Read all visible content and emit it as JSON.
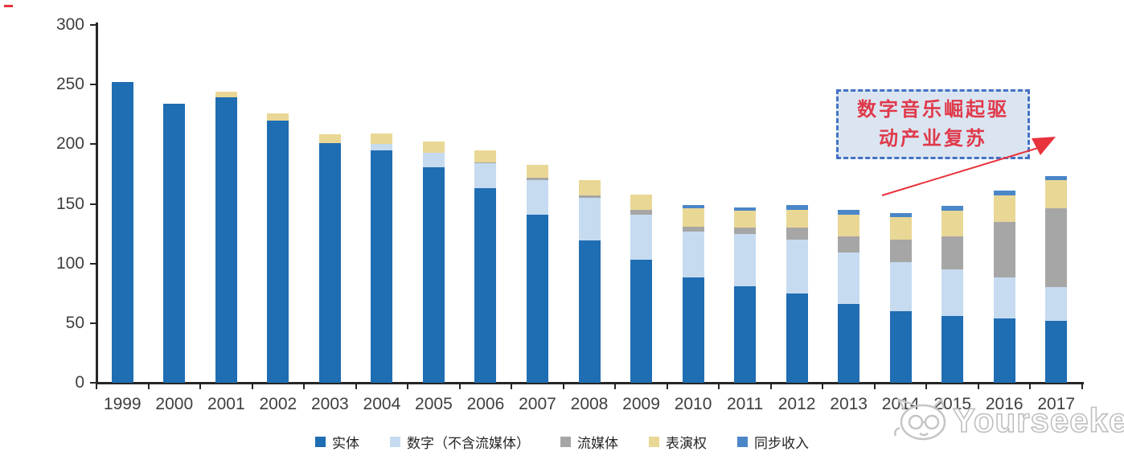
{
  "chart_data": {
    "type": "bar",
    "stacked": true,
    "title": "",
    "xlabel": "",
    "ylabel": "",
    "ylim": [
      0,
      300
    ],
    "yticks": [
      0,
      50,
      100,
      150,
      200,
      250,
      300
    ],
    "grid": false,
    "legend_position": "bottom",
    "categories": [
      "1999",
      "2000",
      "2001",
      "2002",
      "2003",
      "2004",
      "2005",
      "2006",
      "2007",
      "2008",
      "2009",
      "2010",
      "2011",
      "2012",
      "2013",
      "2014",
      "2015",
      "2016",
      "2017"
    ],
    "series": [
      {
        "key": "physical",
        "name": "实体",
        "color": "#1f6db3",
        "values": [
          252,
          234,
          239,
          220,
          201,
          195,
          181,
          163,
          141,
          119,
          103,
          88,
          81,
          75,
          66,
          60,
          56,
          54,
          52
        ]
      },
      {
        "key": "digital-excl-streaming",
        "name": "数字（不含流媒体）",
        "color": "#c6dbf0",
        "values": [
          0,
          0,
          0,
          0,
          0,
          5,
          12,
          21,
          29,
          36,
          38,
          39,
          44,
          45,
          43,
          41,
          39,
          34,
          28
        ]
      },
      {
        "key": "streaming",
        "name": "流媒体",
        "color": "#a6a6a6",
        "values": [
          0,
          0,
          0,
          0,
          0,
          0,
          0,
          1,
          2,
          2,
          4,
          4,
          5,
          10,
          14,
          19,
          28,
          47,
          66
        ]
      },
      {
        "key": "performance-rights",
        "name": "表演权",
        "color": "#e9d795",
        "values": [
          0,
          0,
          5,
          6,
          7,
          9,
          9,
          10,
          11,
          13,
          13,
          15,
          14,
          15,
          18,
          19,
          21,
          22,
          24
        ]
      },
      {
        "key": "sync",
        "name": "同步收入",
        "color": "#4a86c8",
        "values": [
          0,
          0,
          0,
          0,
          0,
          0,
          0,
          0,
          0,
          0,
          0,
          3,
          3,
          4,
          4,
          3,
          4,
          4,
          3
        ]
      }
    ]
  },
  "annotation": {
    "line1": "数字音乐崛起驱",
    "line2": "动产业复苏",
    "border_color": "#4472c4",
    "fill_color": "#dbe5f2",
    "text_color": "#e0394a",
    "arrow_color": "#e8323c"
  },
  "watermark": {
    "text": "Yourseeker",
    "logo": "cat-logo"
  },
  "axis": {
    "line_color": "#262626",
    "label_color": "#3f3f3f"
  }
}
